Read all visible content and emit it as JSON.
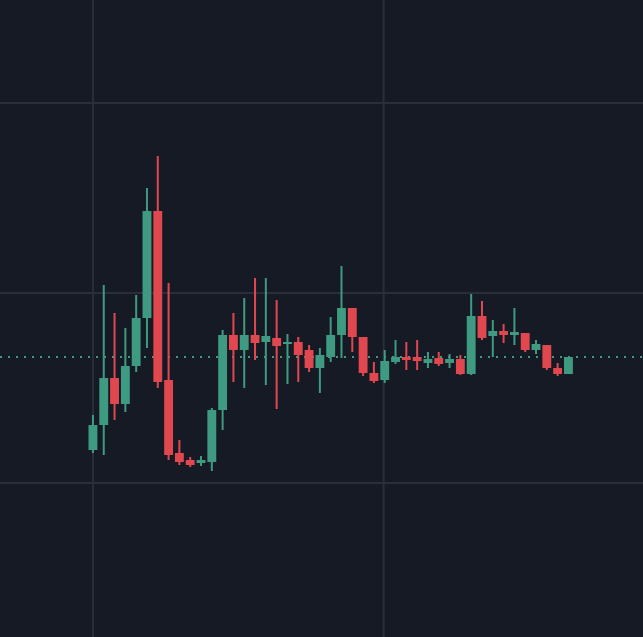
{
  "chart_data": {
    "type": "candlestick",
    "up_color": "#3e9b82",
    "down_color": "#e0474f",
    "grid": true,
    "price_line": true,
    "xlim": [
      -8.6,
      50.9
    ],
    "xticks": [
      0,
      26.9
    ],
    "ylim": [
      0,
      637
    ],
    "yticks": [
      154,
      344,
      534
    ],
    "open": [
      187,
      212,
      259,
      233,
      271,
      319,
      426,
      257,
      184,
      177,
      174,
      175,
      227,
      302,
      287,
      302,
      295,
      299,
      293,
      295,
      287,
      269,
      280,
      302,
      329,
      300,
      264,
      257,
      275,
      280,
      280,
      274,
      279,
      274,
      278,
      263,
      321,
      301,
      306,
      302,
      304,
      287,
      292,
      269,
      263
    ],
    "high": [
      222,
      352,
      324,
      309,
      342,
      449,
      481,
      354,
      197,
      180,
      181,
      229,
      307,
      324,
      339,
      359,
      359,
      337,
      303,
      300,
      292,
      289,
      320,
      371,
      329,
      300,
      275,
      287,
      297,
      295,
      297,
      285,
      285,
      283,
      282,
      343,
      336,
      317,
      313,
      329,
      304,
      297,
      292,
      274,
      280
    ],
    "low": [
      184,
      182,
      217,
      225,
      265,
      289,
      249,
      177,
      172,
      170,
      171,
      166,
      207,
      255,
      249,
      277,
      252,
      228,
      253,
      255,
      265,
      244,
      275,
      279,
      285,
      261,
      254,
      254,
      273,
      267,
      267,
      269,
      271,
      269,
      262,
      262,
      297,
      280,
      294,
      292,
      285,
      283,
      267,
      261,
      263
    ],
    "close": [
      212,
      259,
      233,
      271,
      319,
      426,
      255,
      182,
      175,
      172,
      177,
      227,
      302,
      287,
      302,
      294,
      301,
      291,
      295,
      282,
      269,
      282,
      302,
      329,
      300,
      264,
      256,
      276,
      280,
      277,
      276,
      278,
      273,
      278,
      263,
      321,
      299,
      306,
      302,
      305,
      287,
      293,
      269,
      263,
      280
    ]
  }
}
